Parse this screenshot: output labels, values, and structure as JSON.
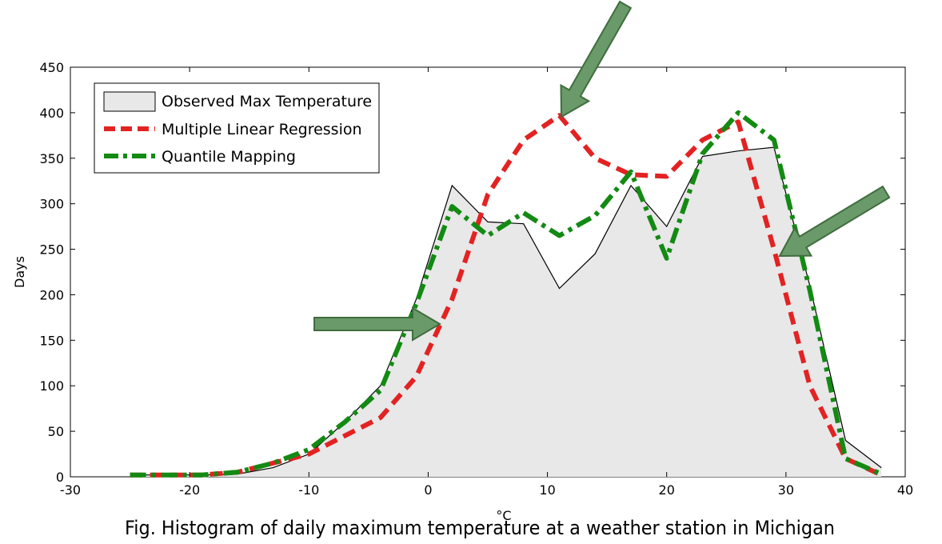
{
  "chart_data": {
    "type": "area",
    "title": "",
    "xlabel": "°C",
    "ylabel": "Days",
    "xlim": [
      -30,
      40
    ],
    "ylim": [
      0,
      450
    ],
    "xticks": [
      -30,
      -20,
      -10,
      0,
      10,
      20,
      30,
      40
    ],
    "yticks": [
      0,
      50,
      100,
      150,
      200,
      250,
      300,
      350,
      400,
      450
    ],
    "grid": false,
    "legend_position": "top-left",
    "series": [
      {
        "name": "Observed Max Temperature",
        "style": "filled-area",
        "color": "#000000",
        "fill": "#e8e8e8",
        "x": [
          -25,
          -22,
          -19,
          -16,
          -13,
          -10,
          -7,
          -4,
          -1,
          2,
          5,
          8,
          11,
          14,
          17,
          20,
          23,
          26,
          29,
          32,
          35,
          38
        ],
        "y": [
          2,
          2,
          2,
          3,
          10,
          25,
          60,
          100,
          195,
          320,
          280,
          278,
          207,
          245,
          320,
          275,
          352,
          358,
          362,
          210,
          40,
          10
        ]
      },
      {
        "name": "Multiple Linear Regression",
        "style": "dashed",
        "color": "#e32222",
        "x": [
          -25,
          -22,
          -19,
          -16,
          -13,
          -10,
          -7,
          -4,
          -1,
          2,
          5,
          8,
          11,
          14,
          17,
          20,
          23,
          26,
          29,
          32,
          35,
          38
        ],
        "y": [
          2,
          2,
          2,
          5,
          15,
          25,
          45,
          65,
          110,
          195,
          310,
          370,
          397,
          350,
          332,
          330,
          370,
          390,
          250,
          100,
          20,
          2
        ]
      },
      {
        "name": "Quantile Mapping",
        "style": "dash-dot",
        "color": "#138a13",
        "x": [
          -25,
          -22,
          -19,
          -16,
          -13,
          -10,
          -7,
          -4,
          -1,
          2,
          5,
          8,
          11,
          14,
          17,
          20,
          23,
          26,
          29,
          32,
          35,
          38
        ],
        "y": [
          2,
          2,
          2,
          5,
          15,
          30,
          60,
          95,
          190,
          297,
          265,
          290,
          265,
          287,
          335,
          240,
          355,
          400,
          370,
          205,
          20,
          3
        ]
      }
    ],
    "annotations": [
      "arrow",
      "arrow",
      "arrow"
    ]
  },
  "caption": "Fig. Histogram of daily maximum temperature at a weather station in Michigan",
  "colors": {
    "arrow_fill": "#6a9a6a",
    "arrow_stroke": "#3f6d3f"
  }
}
